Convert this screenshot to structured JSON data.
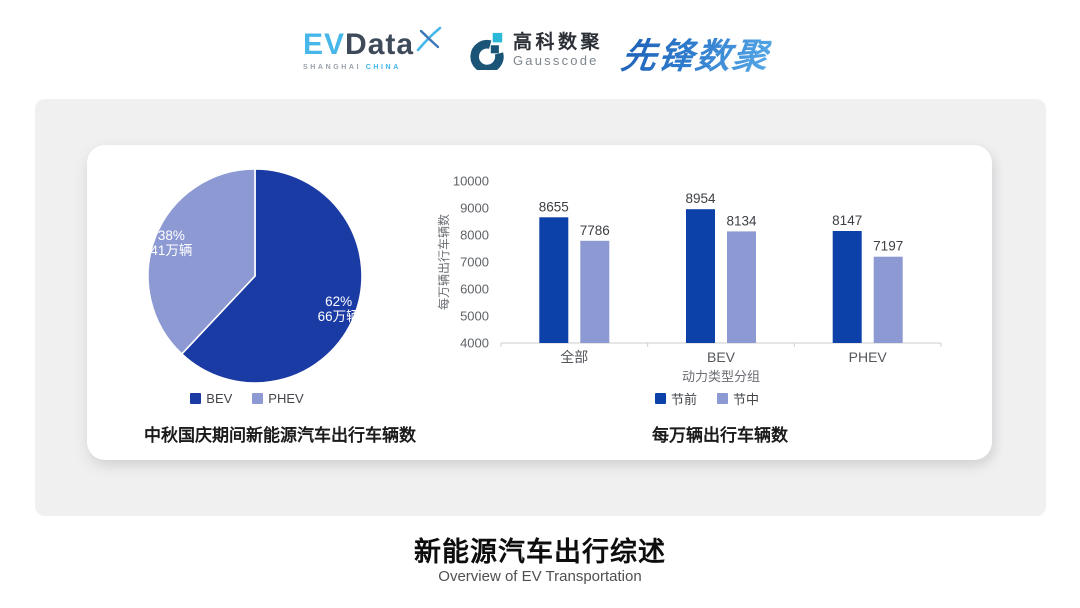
{
  "header": {
    "evdata": {
      "brand_ev": "EV",
      "brand_data": "Data",
      "sub1": "SHANGHAI",
      "sub2": "CHINA"
    },
    "gausscode": {
      "name_cn": "高科数聚",
      "name_en": "Gausscode"
    },
    "pioneer": {
      "name": "先锋数聚"
    }
  },
  "colors": {
    "primary_dark_blue": "#0B41A8",
    "secondary_light_blue": "#8D99D3",
    "evdata_cyan": "#47B7E9",
    "evdata_slate": "#3E4A5A",
    "gausscode_navy": "#1A5578",
    "gausscode_cyan": "#2CB8D8",
    "pioneer_blue": "#2F7BCC",
    "panel_gray": "#F0F0F1"
  },
  "chart_data": [
    {
      "type": "pie",
      "title": "中秋国庆期间新能源汽车出行车辆数",
      "start": "top",
      "direction": "clockwise",
      "legend_position": "bottom",
      "slices": [
        {
          "label": "BEV",
          "value": 62,
          "pct_text": "62%",
          "amount_text": "66万辆",
          "color": "#1B3BA4"
        },
        {
          "label": "PHEV",
          "value": 38,
          "pct_text": "38%",
          "amount_text": "41万辆",
          "color": "#8D99D3"
        }
      ]
    },
    {
      "type": "bar",
      "title": "每万辆出行车辆数",
      "categories": [
        "全部",
        "BEV",
        "PHEV"
      ],
      "series": [
        {
          "name": "节前",
          "values": [
            8655,
            8954,
            8147
          ],
          "color": "#0B41A8"
        },
        {
          "name": "节中",
          "values": [
            7786,
            8134,
            7197
          ],
          "color": "#8D99D3"
        }
      ],
      "xlabel": "动力类型分组",
      "ylabel": "每万辆出行车辆数",
      "ylim": [
        4000,
        10000
      ],
      "yticks": [
        4000,
        5000,
        6000,
        7000,
        8000,
        9000,
        10000
      ],
      "grid": false,
      "legend_position": "bottom"
    }
  ],
  "footer": {
    "title": "新能源汽车出行综述",
    "subtitle": "Overview of EV Transportation"
  }
}
